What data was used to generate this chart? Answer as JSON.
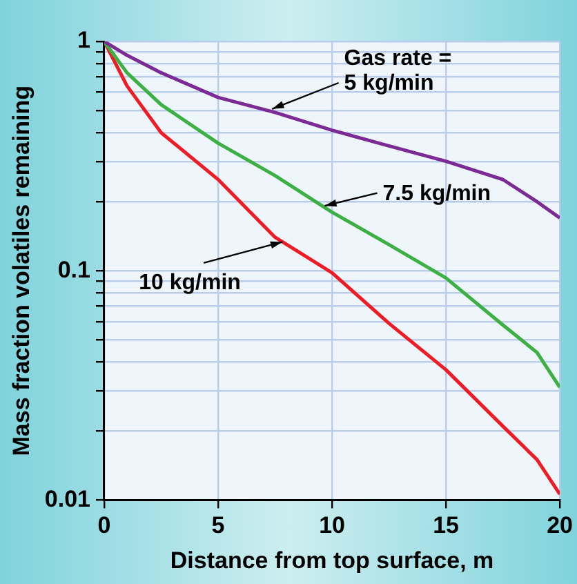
{
  "chart_data": {
    "type": "line",
    "xlabel": "Distance from top surface, m",
    "ylabel": "Mass fraction volatiles remaining",
    "log": "y",
    "grid": true,
    "legend": false,
    "marker": "none",
    "line_style": "solid",
    "xlim": [
      0,
      20
    ],
    "xticks": [
      0,
      5,
      10,
      15,
      20
    ],
    "ylim": [
      0.01,
      1
    ],
    "yticks": [
      0.01,
      {
        "value": 0.02,
        "label": null
      },
      {
        "value": 0.03,
        "label": null
      },
      {
        "value": 0.04,
        "label": null
      },
      {
        "value": 0.05,
        "label": null
      },
      {
        "value": 0.06,
        "label": null
      },
      {
        "value": 0.07,
        "label": null
      },
      {
        "value": 0.08,
        "label": null
      },
      {
        "value": 0.09,
        "label": null
      },
      0.1,
      {
        "value": 0.2,
        "label": null
      },
      {
        "value": 0.3,
        "label": null
      },
      {
        "value": 0.4,
        "label": null
      },
      {
        "value": 0.5,
        "label": null
      },
      {
        "value": 0.6,
        "label": null
      },
      {
        "value": 0.7,
        "label": null
      },
      {
        "value": 0.8,
        "label": null
      },
      {
        "value": 0.9,
        "label": null
      },
      1
    ],
    "x": [
      0,
      1,
      2.5,
      5,
      7.5,
      10,
      12.5,
      15,
      17.5,
      19,
      20
    ],
    "series": [
      {
        "color": "#7b2a96",
        "values": [
          1,
          0.87,
          0.73,
          0.57,
          0.49,
          0.41,
          0.35,
          0.3,
          0.25,
          0.2,
          0.17
        ]
      },
      {
        "color": "#3cb043",
        "values": [
          1,
          0.73,
          0.53,
          0.36,
          0.26,
          0.18,
          0.13,
          0.093,
          0.058,
          0.044,
          0.031
        ]
      },
      {
        "color": "#ee1c25",
        "values": [
          1,
          0.64,
          0.4,
          0.25,
          0.14,
          0.098,
          0.059,
          0.037,
          0.021,
          0.015,
          0.0106
        ]
      }
    ],
    "annotations": [
      {
        "text": "Gas rate =\n5 kg/min",
        "x": 7.2,
        "y": 0.5
      },
      {
        "text": "7.5 kg/min",
        "x": 9.5,
        "y": 0.19
      },
      {
        "text": "10 kg/min",
        "x": 8,
        "y": 0.135
      }
    ]
  }
}
